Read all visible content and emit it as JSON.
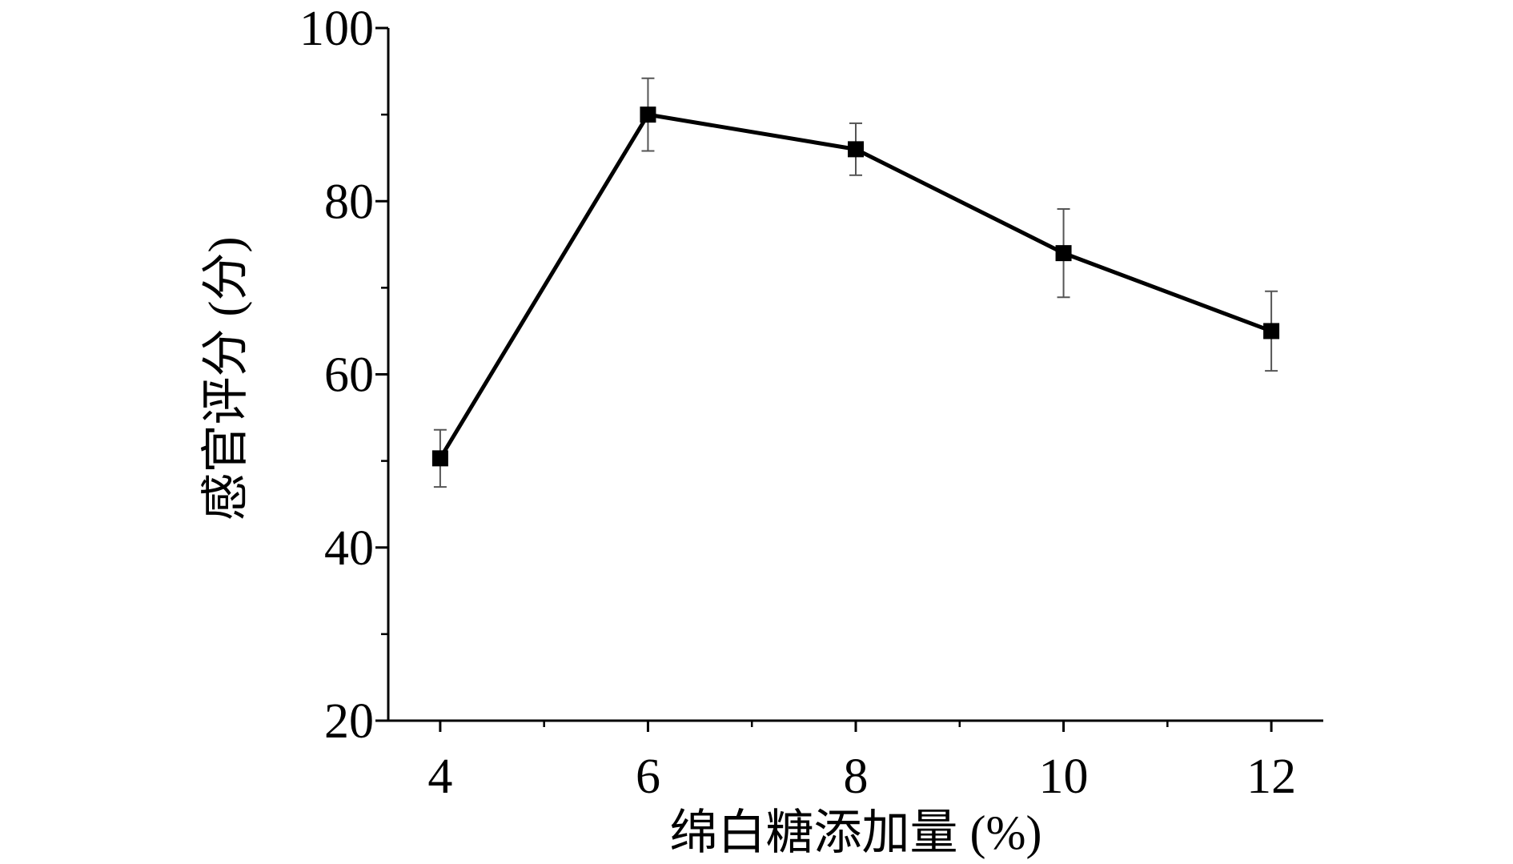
{
  "chart_data": {
    "type": "line",
    "title": "",
    "xlabel": "绵白糖添加量 (%)",
    "ylabel": "感官评分 (分)",
    "x": [
      4,
      6,
      8,
      10,
      12
    ],
    "series": [
      {
        "values": [
          50.3,
          90.0,
          86.0,
          74.0,
          65.0
        ],
        "error": [
          3.3,
          4.2,
          3.0,
          5.1,
          4.6
        ]
      }
    ],
    "xlim": [
      3.5,
      12.5
    ],
    "ylim": [
      20,
      100
    ],
    "xticks": [
      "4",
      "6",
      "8",
      "10",
      "12"
    ],
    "yticks": [
      "20",
      "40",
      "60",
      "80",
      "100"
    ],
    "grid": false,
    "legend": "none",
    "line_color": "#000000",
    "marker": "square"
  }
}
